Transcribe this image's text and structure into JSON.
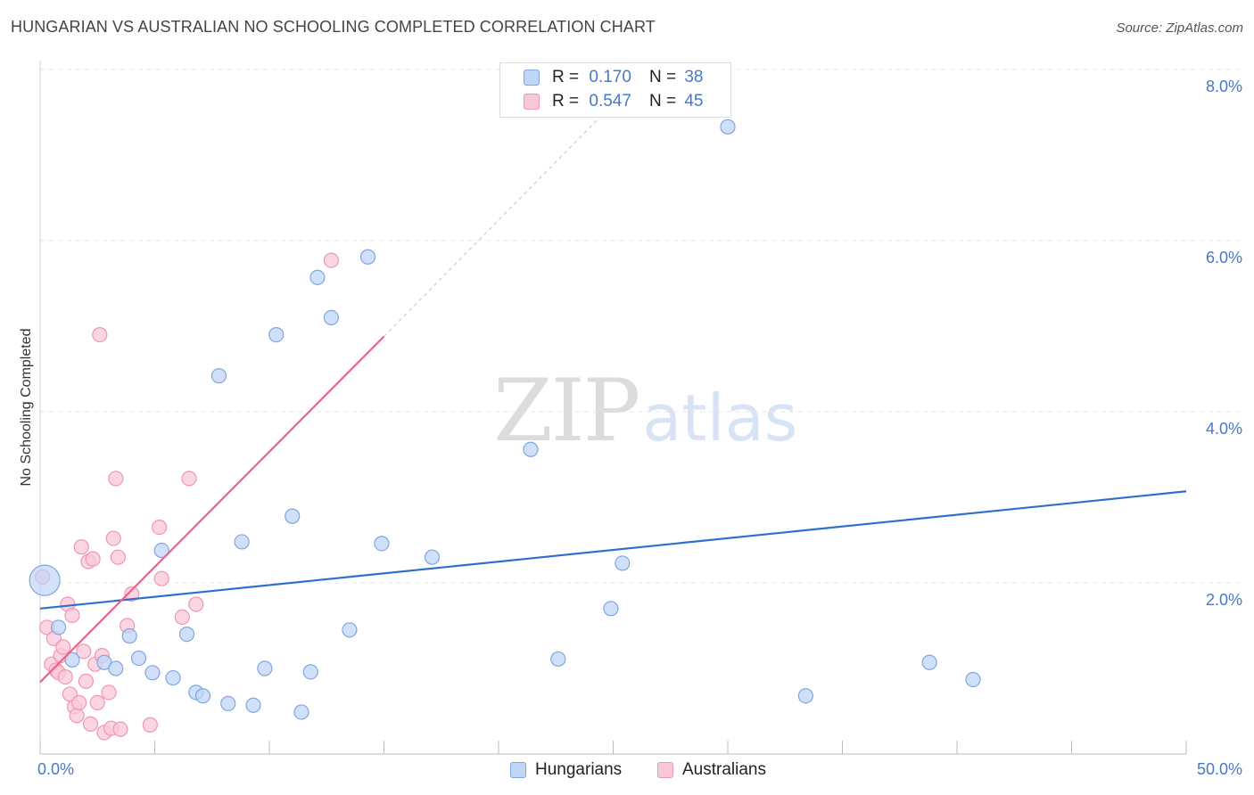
{
  "header": {
    "title": "HUNGARIAN VS AUSTRALIAN NO SCHOOLING COMPLETED CORRELATION CHART",
    "source": "Source: ZipAtlas.com"
  },
  "watermark": {
    "zip": "ZIP",
    "atlas": "atlas"
  },
  "legend": {
    "r_label": "R =",
    "n_label": "N =",
    "hungarians": {
      "r": "0.170",
      "n": "38"
    },
    "australians": {
      "r": "0.547",
      "n": "45"
    },
    "bottom": {
      "hungarians": "Hungarians",
      "australians": "Australians"
    }
  },
  "colors": {
    "blue_fill": "#c0d6f7",
    "blue_stroke": "#7ea6e0",
    "blue_line": "#2f6fcc",
    "pink_fill": "#f9c8d8",
    "pink_stroke": "#ee97b2",
    "pink_line": "#e8648c",
    "tick_text": "#4a78c8",
    "grid": "#e4e4e4"
  },
  "chart_data": {
    "type": "scatter",
    "title": "HUNGARIAN VS AUSTRALIAN NO SCHOOLING COMPLETED CORRELATION CHART",
    "xlabel": "",
    "ylabel": "No Schooling Completed",
    "xlim": [
      0,
      50
    ],
    "ylim": [
      0,
      8
    ],
    "x_tick_labels": [
      "0.0%",
      "50.0%"
    ],
    "y_ticks": [
      2,
      4,
      6,
      8
    ],
    "y_tick_labels": [
      "2.0%",
      "4.0%",
      "6.0%",
      "8.0%"
    ],
    "series": [
      {
        "name": "Hungarians",
        "r": 0.17,
        "n": 38,
        "trendline": {
          "x": [
            0,
            50
          ],
          "y": [
            1.7,
            3.07
          ]
        },
        "points": [
          {
            "x": 0.2,
            "y": 2.03,
            "big": true
          },
          {
            "x": 0.8,
            "y": 1.48
          },
          {
            "x": 1.4,
            "y": 1.1
          },
          {
            "x": 2.8,
            "y": 1.07
          },
          {
            "x": 3.3,
            "y": 1.0
          },
          {
            "x": 3.9,
            "y": 1.38
          },
          {
            "x": 4.3,
            "y": 1.12
          },
          {
            "x": 4.9,
            "y": 0.95
          },
          {
            "x": 5.3,
            "y": 2.38
          },
          {
            "x": 5.8,
            "y": 0.89
          },
          {
            "x": 6.4,
            "y": 1.4
          },
          {
            "x": 6.8,
            "y": 0.72
          },
          {
            "x": 7.1,
            "y": 0.68
          },
          {
            "x": 7.8,
            "y": 4.42
          },
          {
            "x": 8.2,
            "y": 0.59
          },
          {
            "x": 8.8,
            "y": 2.48
          },
          {
            "x": 9.3,
            "y": 0.57
          },
          {
            "x": 9.8,
            "y": 1.0
          },
          {
            "x": 10.3,
            "y": 4.9
          },
          {
            "x": 11.0,
            "y": 2.78
          },
          {
            "x": 11.4,
            "y": 0.49
          },
          {
            "x": 11.8,
            "y": 0.96
          },
          {
            "x": 12.1,
            "y": 5.57
          },
          {
            "x": 12.7,
            "y": 5.1
          },
          {
            "x": 13.5,
            "y": 1.45
          },
          {
            "x": 14.3,
            "y": 5.81
          },
          {
            "x": 14.9,
            "y": 2.46
          },
          {
            "x": 17.1,
            "y": 2.3
          },
          {
            "x": 21.4,
            "y": 3.56
          },
          {
            "x": 22.6,
            "y": 1.11
          },
          {
            "x": 24.9,
            "y": 1.7
          },
          {
            "x": 25.4,
            "y": 2.23
          },
          {
            "x": 30.0,
            "y": 7.33
          },
          {
            "x": 33.4,
            "y": 0.68
          },
          {
            "x": 38.8,
            "y": 1.07
          },
          {
            "x": 40.7,
            "y": 0.87
          }
        ]
      },
      {
        "name": "Australians",
        "r": 0.547,
        "n": 45,
        "trendline": {
          "x": [
            0,
            15
          ],
          "y": [
            0.84,
            4.88
          ],
          "dashed_to": {
            "x": 25,
            "y": 7.6
          }
        },
        "points": [
          {
            "x": 0.1,
            "y": 2.07
          },
          {
            "x": 0.3,
            "y": 1.48
          },
          {
            "x": 0.5,
            "y": 1.05
          },
          {
            "x": 0.6,
            "y": 1.35
          },
          {
            "x": 0.7,
            "y": 0.98
          },
          {
            "x": 0.8,
            "y": 0.95
          },
          {
            "x": 0.9,
            "y": 1.15
          },
          {
            "x": 1.0,
            "y": 1.25
          },
          {
            "x": 1.1,
            "y": 0.9
          },
          {
            "x": 1.2,
            "y": 1.75
          },
          {
            "x": 1.3,
            "y": 0.7
          },
          {
            "x": 1.4,
            "y": 1.62
          },
          {
            "x": 1.5,
            "y": 0.55
          },
          {
            "x": 1.6,
            "y": 0.45
          },
          {
            "x": 1.7,
            "y": 0.6
          },
          {
            "x": 1.8,
            "y": 2.42
          },
          {
            "x": 1.9,
            "y": 1.2
          },
          {
            "x": 2.0,
            "y": 0.85
          },
          {
            "x": 2.1,
            "y": 2.25
          },
          {
            "x": 2.2,
            "y": 0.35
          },
          {
            "x": 2.3,
            "y": 2.28
          },
          {
            "x": 2.4,
            "y": 1.05
          },
          {
            "x": 2.5,
            "y": 0.6
          },
          {
            "x": 2.6,
            "y": 4.9
          },
          {
            "x": 2.7,
            "y": 1.15
          },
          {
            "x": 2.8,
            "y": 0.25
          },
          {
            "x": 3.0,
            "y": 0.72
          },
          {
            "x": 3.1,
            "y": 0.3
          },
          {
            "x": 3.2,
            "y": 2.52
          },
          {
            "x": 3.3,
            "y": 3.22
          },
          {
            "x": 3.4,
            "y": 2.3
          },
          {
            "x": 3.5,
            "y": 0.29
          },
          {
            "x": 3.8,
            "y": 1.5
          },
          {
            "x": 4.0,
            "y": 1.87
          },
          {
            "x": 4.8,
            "y": 0.34
          },
          {
            "x": 5.2,
            "y": 2.65
          },
          {
            "x": 5.3,
            "y": 2.05
          },
          {
            "x": 6.2,
            "y": 1.6
          },
          {
            "x": 6.5,
            "y": 3.22
          },
          {
            "x": 6.8,
            "y": 1.75
          },
          {
            "x": 12.7,
            "y": 5.77
          }
        ]
      }
    ]
  }
}
